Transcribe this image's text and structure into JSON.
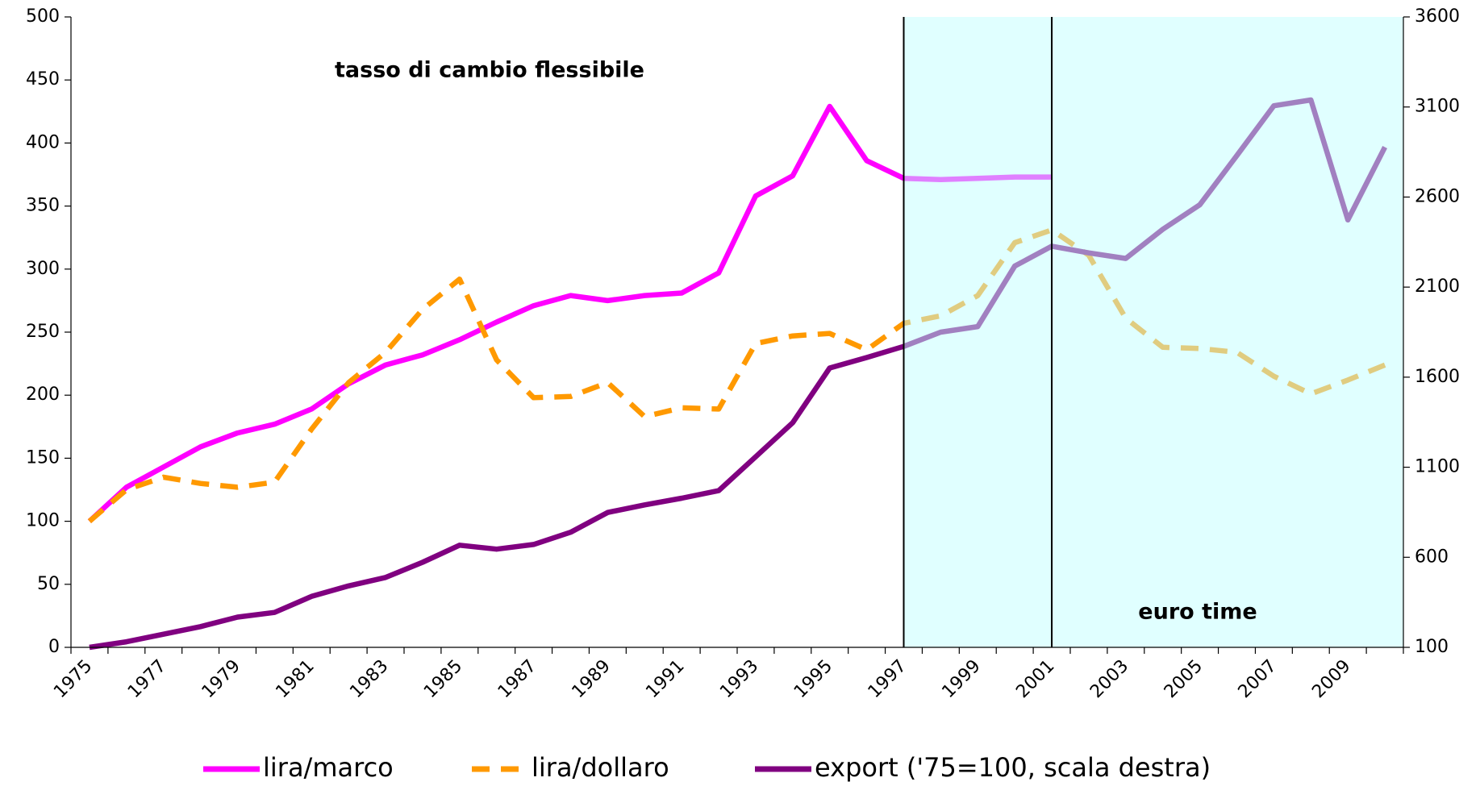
{
  "chart_data": {
    "type": "line",
    "annotations": [
      "tasso di cambio flessibile",
      "euro time"
    ],
    "categories": [
      "1975",
      null,
      "1977",
      null,
      "1979",
      null,
      "1981",
      null,
      "1983",
      null,
      "1985",
      null,
      "1987",
      null,
      "1989",
      null,
      "1991",
      null,
      "1993",
      null,
      "1995",
      null,
      "1997",
      null,
      "1999",
      null,
      "2001",
      null,
      "2003",
      null,
      "2005",
      null,
      "2007",
      null,
      "2009",
      null
    ],
    "series": [
      {
        "name": "lira/marco",
        "color": "#ff00ff",
        "dash": false,
        "values": [
          100,
          127,
          143,
          159,
          170,
          177,
          189,
          209,
          224,
          232,
          244,
          258,
          271,
          279,
          275,
          279,
          281,
          297,
          358,
          374,
          429,
          386,
          372,
          371,
          372,
          373,
          373,
          null,
          null,
          null,
          null,
          null,
          null,
          null,
          null,
          null
        ]
      },
      {
        "name": "lira/dollaro",
        "color": "#ff9900",
        "dash": true,
        "values": [
          100,
          125,
          135,
          130,
          127,
          131,
          173,
          210,
          234,
          268,
          292,
          228,
          198,
          199,
          210,
          183,
          190,
          189,
          241,
          247,
          249,
          236,
          257,
          263,
          279,
          321,
          331,
          311,
          261,
          238,
          237,
          234,
          215,
          201,
          212,
          224
        ]
      },
      {
        "name": "export ('75=100, scala destra)",
        "color": "#800080",
        "dash": false,
        "axis": "y2",
        "values": [
          100,
          131,
          173,
          215,
          268,
          294,
          383,
          441,
          488,
          572,
          667,
          645,
          671,
          739,
          849,
          891,
          928,
          970,
          1158,
          1347,
          1651,
          1709,
          1771,
          1850,
          1881,
          2217,
          2327,
          2290,
          2259,
          2421,
          2557,
          2830,
          3107,
          3139,
          2473,
          2877
        ]
      }
    ],
    "ylim": [
      0,
      500
    ],
    "yticks": [
      0,
      50,
      100,
      150,
      200,
      250,
      300,
      350,
      400,
      450,
      500
    ],
    "y2lim": [
      100,
      3600
    ],
    "y2ticks": [
      100,
      600,
      1100,
      1600,
      2100,
      2600,
      3100,
      3600
    ],
    "grid": false,
    "legend": "bottom"
  }
}
